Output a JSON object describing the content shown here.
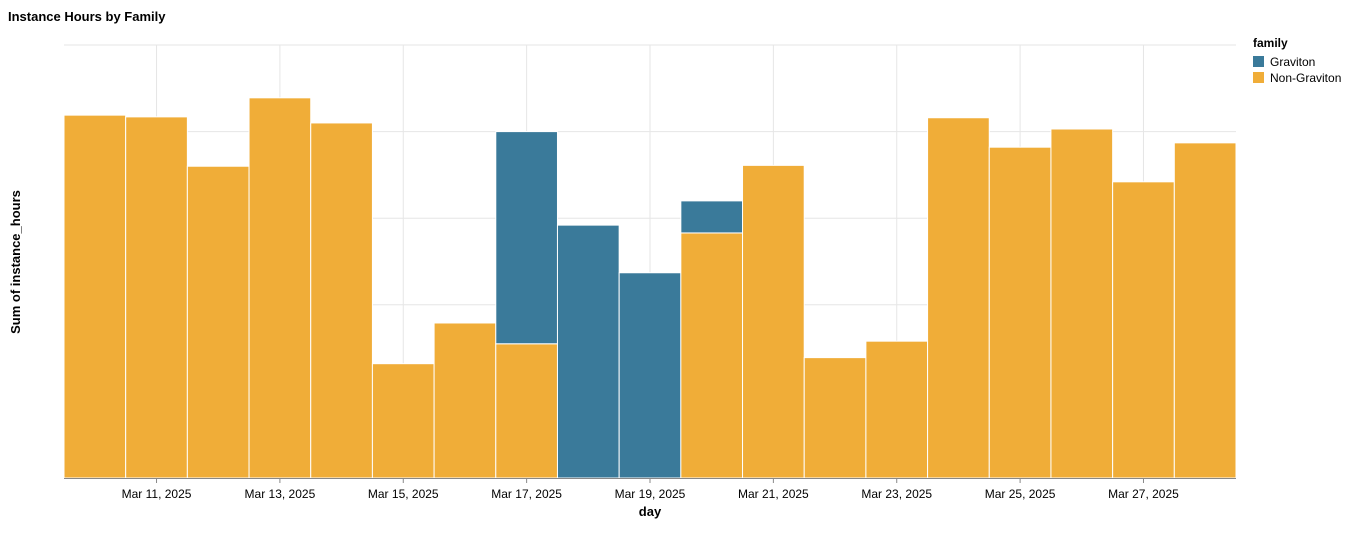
{
  "chart_data": {
    "type": "bar",
    "stacked": true,
    "title": "Instance Hours by Family",
    "xlabel": "day",
    "ylabel": "Sum of instance_hours",
    "y_tick_labels_shown": false,
    "ylim": [
      0,
      5
    ],
    "grid": true,
    "legend": {
      "title": "family",
      "placement": "top-right"
    },
    "categories": [
      "Mar 10, 2025",
      "Mar 11, 2025",
      "Mar 12, 2025",
      "Mar 13, 2025",
      "Mar 14, 2025",
      "Mar 15, 2025",
      "Mar 16, 2025",
      "Mar 17, 2025",
      "Mar 18, 2025",
      "Mar 19, 2025",
      "Mar 20, 2025",
      "Mar 21, 2025",
      "Mar 22, 2025",
      "Mar 23, 2025",
      "Mar 24, 2025",
      "Mar 25, 2025",
      "Mar 26, 2025",
      "Mar 27, 2025",
      "Mar 28, 2025"
    ],
    "x_tick_labels": [
      "Mar 11, 2025",
      "Mar 13, 2025",
      "Mar 15, 2025",
      "Mar 17, 2025",
      "Mar 19, 2025",
      "Mar 21, 2025",
      "Mar 23, 2025",
      "Mar 25, 2025",
      "Mar 27, 2025"
    ],
    "series": [
      {
        "name": "Non-Graviton",
        "color": "#f0ad38",
        "values": [
          4.19,
          4.17,
          3.6,
          4.39,
          4.1,
          1.32,
          1.79,
          1.55,
          0,
          0,
          2.83,
          3.61,
          1.39,
          1.58,
          4.16,
          3.82,
          4.03,
          3.42,
          3.87
        ]
      },
      {
        "name": "Graviton",
        "color": "#3a7a9a",
        "values": [
          0,
          0,
          0,
          0,
          0,
          0,
          0,
          2.45,
          2.92,
          2.37,
          0.37,
          0,
          0,
          0,
          0,
          0,
          0,
          0,
          0
        ]
      }
    ],
    "legend_order": [
      "Graviton",
      "Non-Graviton"
    ]
  }
}
